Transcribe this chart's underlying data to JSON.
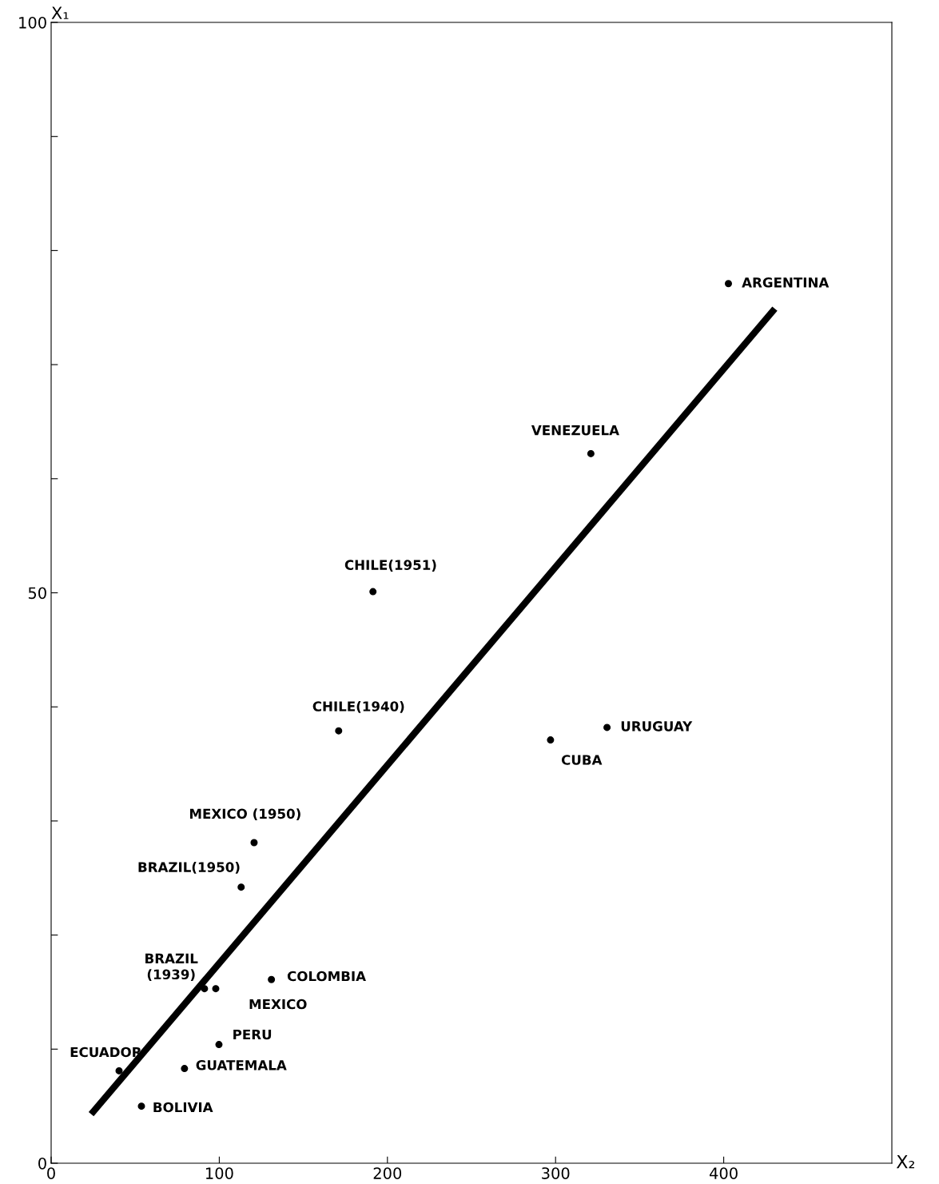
{
  "chart_data": {
    "type": "scatter",
    "xlabel": "X₂",
    "ylabel": "X₁",
    "x": [
      402.8,
      321,
      191.4,
      171,
      297,
      330.6,
      120.7,
      113,
      131,
      91.2,
      97.9,
      99.8,
      40.4,
      79.3,
      53.7
    ],
    "series": [
      {
        "color": "#000000",
        "marker": "circle",
        "values": [
          77.1,
          62.2,
          50.1,
          37.9,
          37.1,
          38.2,
          28.1,
          24.2,
          16.1,
          15.3,
          15.3,
          10.4,
          8.1,
          8.3,
          5.0
        ]
      },
      {
        "type": "line",
        "color": "#000000",
        "x": [
          23.8,
          430.4
        ],
        "values": [
          4.3,
          74.9
        ]
      }
    ],
    "annotations": [
      {
        "text": "ARGENTINA",
        "x": 402.8,
        "y": 77.1
      },
      {
        "text": "VENEZUELA",
        "x": 321,
        "y": 62.2
      },
      {
        "text": "CHILE(1951)",
        "x": 191.4,
        "y": 50.1
      },
      {
        "text": "CHILE(1940)",
        "x": 171,
        "y": 37.9
      },
      {
        "text": "CUBA",
        "x": 297,
        "y": 37.1
      },
      {
        "text": "URUGUAY",
        "x": 330.6,
        "y": 38.2
      },
      {
        "text": "MEXICO (1950)",
        "x": 120.7,
        "y": 28.1
      },
      {
        "text": "BRAZIL(1950)",
        "x": 113,
        "y": 24.2
      },
      {
        "text": "COLOMBIA",
        "x": 131,
        "y": 16.1
      },
      {
        "text": "BRAZIL\n(1939)",
        "x": 91.2,
        "y": 15.3
      },
      {
        "text": "MEXICO",
        "x": 97.9,
        "y": 15.3
      },
      {
        "text": "PERU",
        "x": 99.8,
        "y": 10.4
      },
      {
        "text": "ECUADOR",
        "x": 40.4,
        "y": 8.1
      },
      {
        "text": "GUATEMALA",
        "x": 79.3,
        "y": 8.3
      },
      {
        "text": "BOLIVIA",
        "x": 53.7,
        "y": 5.0
      }
    ],
    "xlim": [
      0,
      500
    ],
    "ylim": [
      0,
      100
    ],
    "xticks": [
      0,
      100,
      200,
      300,
      400
    ],
    "yticks": [
      0,
      {
        "value": 10,
        "label": null
      },
      {
        "value": 20,
        "label": null
      },
      {
        "value": 30,
        "label": null
      },
      {
        "value": 40,
        "label": null
      },
      50,
      {
        "value": 60,
        "label": null
      },
      {
        "value": 70,
        "label": null
      },
      {
        "value": 80,
        "label": null
      },
      {
        "value": 90,
        "label": null
      },
      100
    ],
    "grid": false,
    "legend": false
  }
}
